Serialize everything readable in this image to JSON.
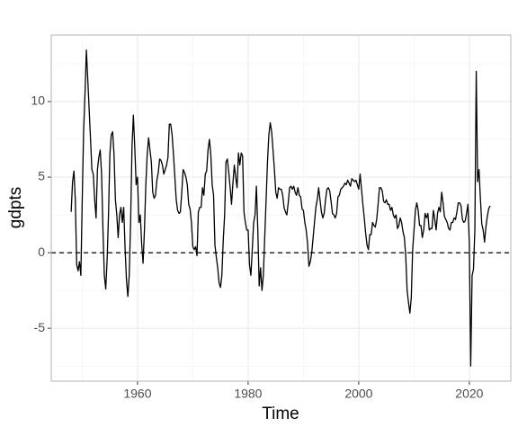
{
  "chart_data": {
    "type": "line",
    "x_label": "Time",
    "y_label": "gdpts",
    "color": "#000000",
    "x": [
      1948,
      1948.25,
      1948.5,
      1948.75,
      1949,
      1949.25,
      1949.5,
      1949.75,
      1950,
      1950.25,
      1950.5,
      1950.75,
      1951,
      1951.25,
      1951.5,
      1951.75,
      1952,
      1952.25,
      1952.5,
      1952.75,
      1953,
      1953.25,
      1953.5,
      1953.75,
      1954,
      1954.25,
      1954.5,
      1954.75,
      1955,
      1955.25,
      1955.5,
      1955.75,
      1956,
      1956.25,
      1956.5,
      1956.75,
      1957,
      1957.25,
      1957.5,
      1957.75,
      1958,
      1958.25,
      1958.5,
      1958.75,
      1959,
      1959.25,
      1959.5,
      1959.75,
      1960,
      1960.25,
      1960.5,
      1960.75,
      1961,
      1961.25,
      1961.5,
      1961.75,
      1962,
      1962.25,
      1962.5,
      1962.75,
      1963,
      1963.25,
      1963.5,
      1963.75,
      1964,
      1964.25,
      1964.5,
      1964.75,
      1965,
      1965.25,
      1965.5,
      1965.75,
      1966,
      1966.25,
      1966.5,
      1966.75,
      1967,
      1967.25,
      1967.5,
      1967.75,
      1968,
      1968.25,
      1968.5,
      1968.75,
      1969,
      1969.25,
      1969.5,
      1969.75,
      1970,
      1970.25,
      1970.5,
      1970.75,
      1971,
      1971.25,
      1971.5,
      1971.75,
      1972,
      1972.25,
      1972.5,
      1972.75,
      1973,
      1973.25,
      1973.5,
      1973.75,
      1974,
      1974.25,
      1974.5,
      1974.75,
      1975,
      1975.25,
      1975.5,
      1975.75,
      1976,
      1976.25,
      1976.5,
      1976.75,
      1977,
      1977.25,
      1977.5,
      1977.75,
      1978,
      1978.25,
      1978.5,
      1978.75,
      1979,
      1979.25,
      1979.5,
      1979.75,
      1980,
      1980.25,
      1980.5,
      1980.75,
      1981,
      1981.25,
      1981.5,
      1981.75,
      1982,
      1982.25,
      1982.5,
      1982.75,
      1983,
      1983.25,
      1983.5,
      1983.75,
      1984,
      1984.25,
      1984.5,
      1984.75,
      1985,
      1985.25,
      1985.5,
      1985.75,
      1986,
      1986.25,
      1986.5,
      1986.75,
      1987,
      1987.25,
      1987.5,
      1987.75,
      1988,
      1988.25,
      1988.5,
      1988.75,
      1989,
      1989.25,
      1989.5,
      1989.75,
      1990,
      1990.25,
      1990.5,
      1990.75,
      1991,
      1991.25,
      1991.5,
      1991.75,
      1992,
      1992.25,
      1992.5,
      1992.75,
      1993,
      1993.25,
      1993.5,
      1993.75,
      1994,
      1994.25,
      1994.5,
      1994.75,
      1995,
      1995.25,
      1995.5,
      1995.75,
      1996,
      1996.25,
      1996.5,
      1996.75,
      1997,
      1997.25,
      1997.5,
      1997.75,
      1998,
      1998.25,
      1998.5,
      1998.75,
      1999,
      1999.25,
      1999.5,
      1999.75,
      2000,
      2000.25,
      2000.5,
      2000.75,
      2001,
      2001.25,
      2001.5,
      2001.75,
      2002,
      2002.25,
      2002.5,
      2002.75,
      2003,
      2003.25,
      2003.5,
      2003.75,
      2004,
      2004.25,
      2004.5,
      2004.75,
      2005,
      2005.25,
      2005.5,
      2005.75,
      2006,
      2006.25,
      2006.5,
      2006.75,
      2007,
      2007.25,
      2007.5,
      2007.75,
      2008,
      2008.25,
      2008.5,
      2008.75,
      2009,
      2009.25,
      2009.5,
      2009.75,
      2010,
      2010.25,
      2010.5,
      2010.75,
      2011,
      2011.25,
      2011.5,
      2011.75,
      2012,
      2012.25,
      2012.5,
      2012.75,
      2013,
      2013.25,
      2013.5,
      2013.75,
      2014,
      2014.25,
      2014.5,
      2014.75,
      2015,
      2015.25,
      2015.5,
      2015.75,
      2016,
      2016.25,
      2016.5,
      2016.75,
      2017,
      2017.25,
      2017.5,
      2017.75,
      2018,
      2018.25,
      2018.5,
      2018.75,
      2019,
      2019.25,
      2019.5,
      2019.75,
      2020,
      2020.25,
      2020.5,
      2020.75,
      2021,
      2021.25,
      2021.5,
      2021.75,
      2022,
      2022.25,
      2022.5,
      2022.75,
      2023,
      2023.25,
      2023.5,
      2023.75
    ],
    "values": [
      2.7,
      4.7,
      5.4,
      3.5,
      -0.8,
      -1.2,
      -0.6,
      -1.5,
      3.5,
      8,
      10.5,
      13.4,
      11.5,
      9.5,
      7.5,
      5.5,
      5.2,
      3.5,
      2.3,
      5.5,
      6.3,
      6.8,
      5.2,
      1.5,
      -1.5,
      -2.4,
      -0.5,
      2.5,
      6.5,
      7.8,
      8.0,
      6.5,
      3.5,
      2.5,
      1.0,
      2.5,
      3.0,
      2.0,
      3.0,
      0.3,
      -1.8,
      -2.9,
      -1.5,
      2.0,
      7.0,
      9.1,
      7.0,
      4.5,
      5.0,
      2.0,
      2.5,
      0.6,
      -0.7,
      1.5,
      4.5,
      6.5,
      7.6,
      6.8,
      6.0,
      4.0,
      3.6,
      3.8,
      4.8,
      5.3,
      6.2,
      6.1,
      5.8,
      5.2,
      5.5,
      5.8,
      6.3,
      8.5,
      8.5,
      7.8,
      6.5,
      5.0,
      3.5,
      2.8,
      2.6,
      2.7,
      4.0,
      5.5,
      5.3,
      5.0,
      4.5,
      3.2,
      2.9,
      2.0,
      0.4,
      0.2,
      0.4,
      -0.2,
      2.7,
      3.0,
      3.0,
      4.3,
      3.8,
      5.2,
      5.4,
      6.8,
      7.5,
      6.5,
      4.5,
      3.8,
      0.5,
      -0.3,
      -1.0,
      -2.0,
      -2.3,
      -1.5,
      0.8,
      2.5,
      6.0,
      6.2,
      5.3,
      4.3,
      3.2,
      4.6,
      5.8,
      5.0,
      4.3,
      6.6,
      5.8,
      6.6,
      6.4,
      2.7,
      2.0,
      1.5,
      1.5,
      -0.8,
      -1.5,
      0.2,
      2.0,
      2.5,
      4.4,
      1.5,
      -2.2,
      -1.0,
      -2.5,
      -1.5,
      1.0,
      3.5,
      6.0,
      7.8,
      8.6,
      8.0,
      6.8,
      5.5,
      4.0,
      3.6,
      4.3,
      4.2,
      4.2,
      3.8,
      3.0,
      2.7,
      2.5,
      3.3,
      4.3,
      4.4,
      4.2,
      4.4,
      4.0,
      3.8,
      4.3,
      3.8,
      3.7,
      2.9,
      2.8,
      2.0,
      1.5,
      0.6,
      -0.9,
      -0.6,
      0,
      1.0,
      2.0,
      3.0,
      3.5,
      4.3,
      3.5,
      2.7,
      2.3,
      2.6,
      3.5,
      4.2,
      4.3,
      4.1,
      3.4,
      2.6,
      2.5,
      2.3,
      2.6,
      3.7,
      3.8,
      4.2,
      4.3,
      4.4,
      4.6,
      4.5,
      4.8,
      4.6,
      4.4,
      4.9,
      4.8,
      4.7,
      4.8,
      4.5,
      4.2,
      5.2,
      4.2,
      3.2,
      2.3,
      1.3,
      0.5,
      0.2,
      1.2,
      1.2,
      2.0,
      1.8,
      1.7,
      2.2,
      3.2,
      4.3,
      4.3,
      4.1,
      3.4,
      3.3,
      3.5,
      3.2,
      3.2,
      2.8,
      3.0,
      2.5,
      2.3,
      2.5,
      1.6,
      1.8,
      2.3,
      2.0,
      1.4,
      1.0,
      -0.2,
      -2.5,
      -3.3,
      -4.0,
      -3.0,
      0.2,
      1.5,
      2.8,
      3.3,
      2.8,
      1.8,
      1.8,
      1.0,
      1.5,
      2.6,
      2.3,
      2.6,
      1.5,
      1.6,
      1.6,
      2.8,
      2.2,
      1.5,
      2.6,
      3.0,
      2.7,
      4.0,
      3.3,
      2.4,
      2.2,
      2.0,
      1.6,
      1.5,
      2.0,
      2.0,
      2.3,
      2.2,
      2.7,
      3.3,
      3.3,
      3.1,
      2.2,
      2.0,
      2.1,
      2.6,
      3.2,
      0.6,
      -7.5,
      -1.5,
      -1.1,
      1.5,
      12.0,
      4.7,
      5.5,
      3.6,
      1.9,
      1.5,
      0.7,
      1.7,
      2.4,
      2.9,
      3.1
    ],
    "xlim": [
      1944.4,
      2027.5
    ],
    "ylim": [
      -8.5,
      14.4
    ],
    "xticks": [
      1960,
      1980,
      2000,
      2020
    ],
    "yticks": [
      -5,
      0,
      5,
      10
    ],
    "minor_xticks": [
      1950,
      1970,
      1990,
      2010
    ],
    "minor_yticks": [
      -7.5,
      -2.5,
      2.5,
      7.5,
      12.5
    ],
    "hline": 0,
    "grid": true
  }
}
